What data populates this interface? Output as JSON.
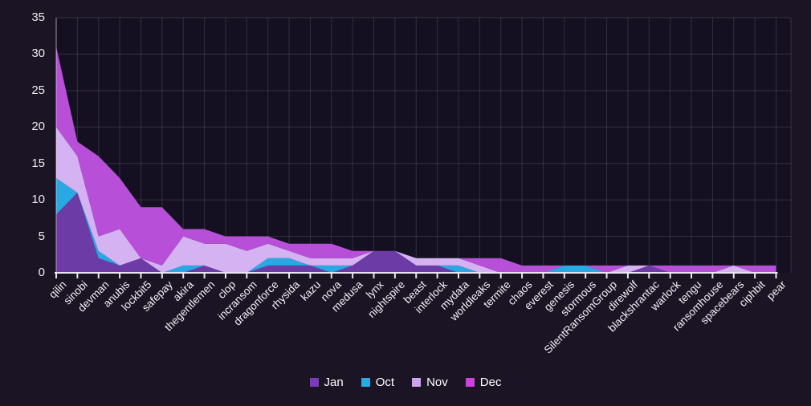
{
  "chart_data": {
    "type": "area",
    "stacked": true,
    "title": "",
    "xlabel": "",
    "ylabel": "",
    "ylim": [
      0,
      35
    ],
    "yticks": [
      0,
      5,
      10,
      15,
      20,
      25,
      30,
      35
    ],
    "grid": true,
    "legend_position": "bottom",
    "background_color": "#1b1424",
    "plot_background_color": "#141021",
    "gridline_color": "rgba(255,255,255,0.13)",
    "axis_line_color": "#e8e6f0",
    "categories": [
      "qilin",
      "sinobi",
      "devman",
      "anubis",
      "lockbit5",
      "safepay",
      "akira",
      "thegentlemen",
      "clop",
      "incransom",
      "dragonforce",
      "rhysida",
      "kazu",
      "nova",
      "medusa",
      "lynx",
      "nightspire",
      "beast",
      "interlock",
      "mydata",
      "worldleaks",
      "termite",
      "chaos",
      "everest",
      "genesis",
      "stormous",
      "SilentRansomGroup",
      "direwolf",
      "blackshrantac",
      "warlock",
      "tengu",
      "ransomhouse",
      "spacebears",
      "ciphbit",
      "pear"
    ],
    "series": [
      {
        "name": "Jan",
        "color": "#7b3ab8",
        "fill": "#6d3ba6",
        "values": [
          8,
          11,
          2,
          1,
          2,
          0,
          0,
          1,
          0,
          0,
          1,
          1,
          1,
          0,
          1,
          3,
          3,
          1,
          1,
          0,
          0,
          0,
          0,
          0,
          0,
          0,
          0,
          0,
          1,
          0,
          0,
          0,
          0,
          0,
          0
        ]
      },
      {
        "name": "Oct",
        "color": "#29abe2",
        "fill": "#29a9e4",
        "values": [
          5,
          0,
          1,
          0,
          0,
          0,
          1,
          0,
          0,
          0,
          1,
          1,
          0,
          1,
          0,
          0,
          0,
          0,
          0,
          1,
          0,
          0,
          0,
          0,
          1,
          1,
          0,
          0,
          0,
          0,
          0,
          0,
          0,
          0,
          0
        ]
      },
      {
        "name": "Nov",
        "color": "#cfa3f0",
        "fill": "#d5b2f2",
        "values": [
          7,
          5,
          2,
          5,
          0,
          1,
          4,
          3,
          4,
          3,
          2,
          1,
          1,
          1,
          1,
          0,
          0,
          1,
          1,
          1,
          1,
          0,
          0,
          0,
          0,
          0,
          0,
          1,
          0,
          0,
          0,
          0,
          1,
          0,
          0
        ]
      },
      {
        "name": "Dec",
        "color": "#d23fdd",
        "fill": "#b84fd8",
        "values": [
          11,
          2,
          11,
          7,
          7,
          8,
          1,
          2,
          1,
          2,
          1,
          1,
          2,
          2,
          1,
          0,
          0,
          0,
          0,
          0,
          1,
          2,
          1,
          1,
          0,
          0,
          1,
          0,
          0,
          1,
          1,
          1,
          0,
          1,
          1
        ]
      }
    ]
  }
}
